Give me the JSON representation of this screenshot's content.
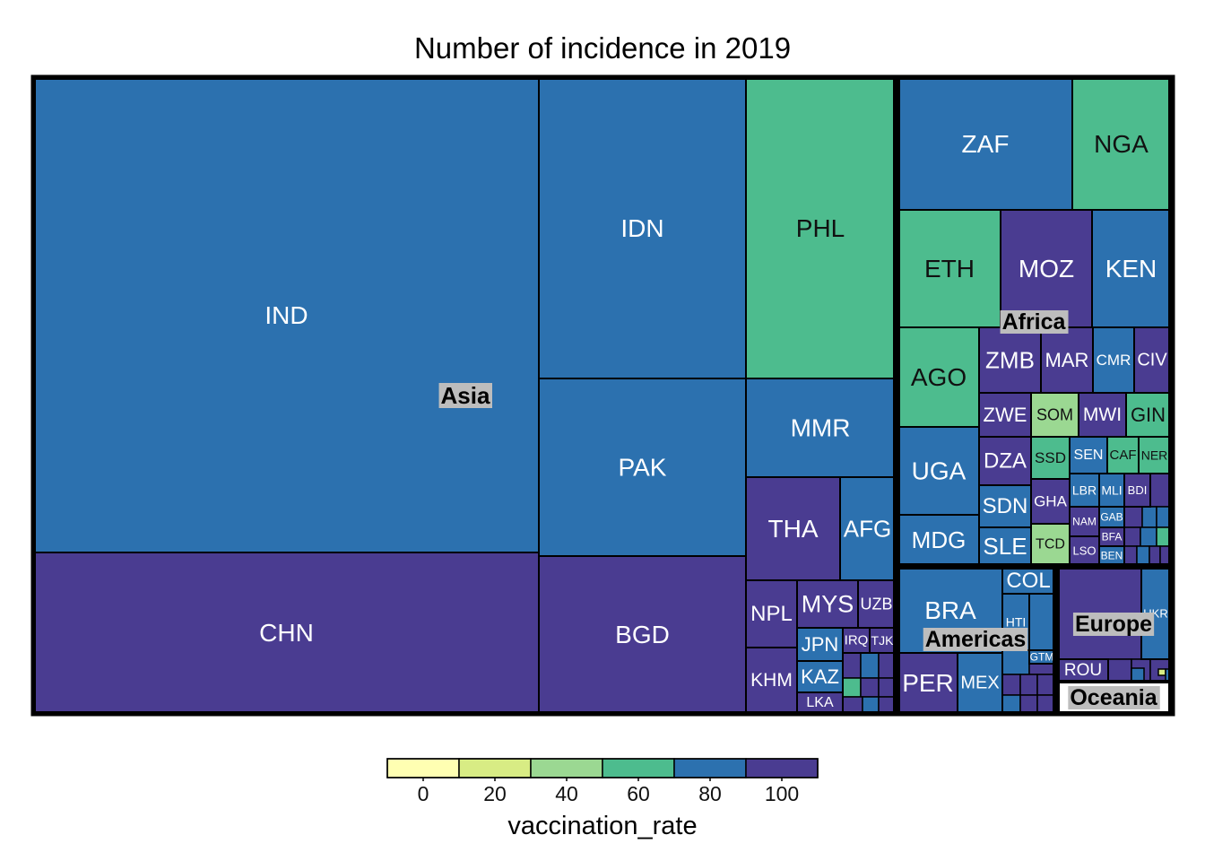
{
  "chart_data": {
    "type": "treemap",
    "title": "Number of incidence in 2019",
    "legend": {
      "title": "vaccination_rate",
      "placement": "bottom",
      "ticks": [
        "0",
        "20",
        "40",
        "60",
        "80",
        "100"
      ],
      "bins": [
        {
          "from": -10,
          "to": 10,
          "color": "#ffffb2"
        },
        {
          "from": 10,
          "to": 30,
          "color": "#d8ec84"
        },
        {
          "from": 30,
          "to": 50,
          "color": "#9bd892"
        },
        {
          "from": 50,
          "to": 70,
          "color": "#4dbc8e"
        },
        {
          "from": 70,
          "to": 90,
          "color": "#2c71af"
        },
        {
          "from": 90,
          "to": 110,
          "color": "#4a3c91"
        }
      ]
    },
    "regions": [
      {
        "name": "Asia",
        "countries": [
          {
            "code": "IND",
            "rate": 88
          },
          {
            "code": "CHN",
            "rate": 99
          },
          {
            "code": "IDN",
            "rate": 85
          },
          {
            "code": "PAK",
            "rate": 86
          },
          {
            "code": "BGD",
            "rate": 98
          },
          {
            "code": "PHL",
            "rate": 62
          },
          {
            "code": "MMR",
            "rate": 82
          },
          {
            "code": "THA",
            "rate": 97
          },
          {
            "code": "AFG",
            "rate": 76
          },
          {
            "code": "NPL",
            "rate": 95
          },
          {
            "code": "MYS",
            "rate": 98
          },
          {
            "code": "UZB",
            "rate": 98
          },
          {
            "code": "JPN",
            "rate": 88
          },
          {
            "code": "IRQ",
            "rate": 92
          },
          {
            "code": "TJK",
            "rate": 97
          },
          {
            "code": "KHM",
            "rate": 90
          },
          {
            "code": "KAZ",
            "rate": 80
          },
          {
            "code": "LKA",
            "rate": 99
          }
        ]
      },
      {
        "name": "Africa",
        "countries": [
          {
            "code": "ZAF",
            "rate": 77
          },
          {
            "code": "NGA",
            "rate": 63
          },
          {
            "code": "ETH",
            "rate": 61
          },
          {
            "code": "MOZ",
            "rate": 93
          },
          {
            "code": "KEN",
            "rate": 88
          },
          {
            "code": "AGO",
            "rate": 60
          },
          {
            "code": "ZMB",
            "rate": 92
          },
          {
            "code": "MAR",
            "rate": 99
          },
          {
            "code": "CMR",
            "rate": 72
          },
          {
            "code": "CIV",
            "rate": 94
          },
          {
            "code": "ZWE",
            "rate": 90
          },
          {
            "code": "SOM",
            "rate": 36
          },
          {
            "code": "MWI",
            "rate": 90
          },
          {
            "code": "GIN",
            "rate": 63
          },
          {
            "code": "UGA",
            "rate": 86
          },
          {
            "code": "DZA",
            "rate": 98
          },
          {
            "code": "SSD",
            "rate": 50
          },
          {
            "code": "SEN",
            "rate": 88
          },
          {
            "code": "CAF",
            "rate": 55
          },
          {
            "code": "NER",
            "rate": 67
          },
          {
            "code": "SDN",
            "rate": 88
          },
          {
            "code": "GHA",
            "rate": 93
          },
          {
            "code": "LBR",
            "rate": 78
          },
          {
            "code": "MLI",
            "rate": 82
          },
          {
            "code": "BDI",
            "rate": 90
          },
          {
            "code": "NAM",
            "rate": 92
          },
          {
            "code": "GAB",
            "rate": 89
          },
          {
            "code": "MDG",
            "rate": 72
          },
          {
            "code": "SLE",
            "rate": 84
          },
          {
            "code": "TCD",
            "rate": 46
          },
          {
            "code": "LSO",
            "rate": 90
          },
          {
            "code": "BFA",
            "rate": 94
          },
          {
            "code": "BEN",
            "rate": 89
          }
        ]
      },
      {
        "name": "Americas",
        "countries": [
          {
            "code": "BRA",
            "rate": 78
          },
          {
            "code": "COL",
            "rate": 89
          },
          {
            "code": "HTI",
            "rate": 70
          },
          {
            "code": "GTM",
            "rate": 88
          },
          {
            "code": "PER",
            "rate": 91
          },
          {
            "code": "MEX",
            "rate": 80
          }
        ]
      },
      {
        "name": "Europe",
        "countries": [
          {
            "code": "UKR",
            "rate": 84
          },
          {
            "code": "ROU",
            "rate": 94
          }
        ]
      },
      {
        "name": "Oceania",
        "countries": []
      }
    ]
  }
}
